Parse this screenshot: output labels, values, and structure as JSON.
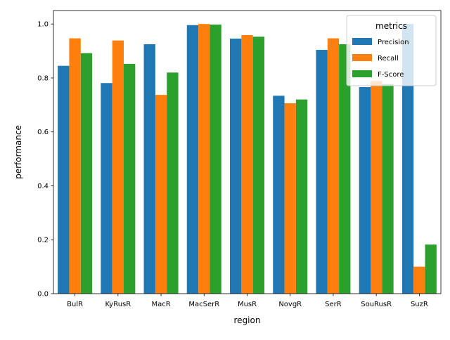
{
  "chart_data": {
    "type": "bar",
    "title": "",
    "xlabel": "region",
    "ylabel": "performance",
    "ylim": [
      0,
      1.05
    ],
    "yticks": [
      "0.0",
      "0.2",
      "0.4",
      "0.6",
      "0.8",
      "1.0"
    ],
    "grid": false,
    "legend": {
      "title": "metrics",
      "placement": "top-right"
    },
    "categories": [
      "BulR",
      "KyRusR",
      "MacR",
      "MacSerR",
      "MusR",
      "NovgR",
      "SerR",
      "SouRusR",
      "SuzR"
    ],
    "series": [
      {
        "name": "Precision",
        "color": "#1f77b4",
        "values": [
          0.845,
          0.781,
          0.925,
          0.996,
          0.946,
          0.734,
          0.904,
          0.766,
          1.0
        ]
      },
      {
        "name": "Recall",
        "color": "#ff7f0e",
        "values": [
          0.947,
          0.939,
          0.737,
          1.0,
          0.959,
          0.706,
          0.947,
          0.789,
          0.1
        ]
      },
      {
        "name": "F-Score",
        "color": "#2ca02c",
        "values": [
          0.892,
          0.852,
          0.82,
          0.998,
          0.953,
          0.72,
          0.925,
          0.777,
          0.182
        ]
      }
    ]
  }
}
